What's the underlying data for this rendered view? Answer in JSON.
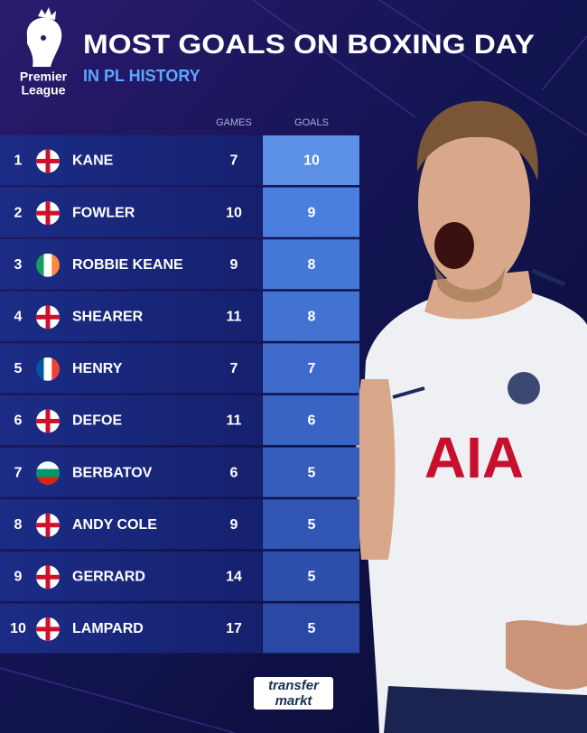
{
  "logo": {
    "line1": "Premier",
    "line2": "League"
  },
  "header": {
    "title": "MOST GOALS ON BOXING DAY",
    "subtitle": "IN PL HISTORY"
  },
  "table": {
    "columns": [
      "GAMES",
      "GOALS"
    ],
    "rows": [
      [
        "1",
        "KANE",
        "7",
        "10"
      ],
      [
        "2",
        "FOWLER",
        "10",
        "9"
      ],
      [
        "3",
        "ROBBIE KEANE",
        "9",
        "8"
      ],
      [
        "4",
        "SHEARER",
        "11",
        "8"
      ],
      [
        "5",
        "HENRY",
        "7",
        "7"
      ],
      [
        "6",
        "DEFOE",
        "11",
        "6"
      ],
      [
        "7",
        "BERBATOV",
        "6",
        "5"
      ],
      [
        "8",
        "ANDY COLE",
        "9",
        "5"
      ],
      [
        "9",
        "GERRARD",
        "14",
        "5"
      ],
      [
        "10",
        "LAMPARD",
        "17",
        "5"
      ]
    ]
  },
  "photo": {
    "shirt_text": "AIA"
  },
  "footer": {
    "brand_line1": "transfer",
    "brand_line2": "markt"
  }
}
